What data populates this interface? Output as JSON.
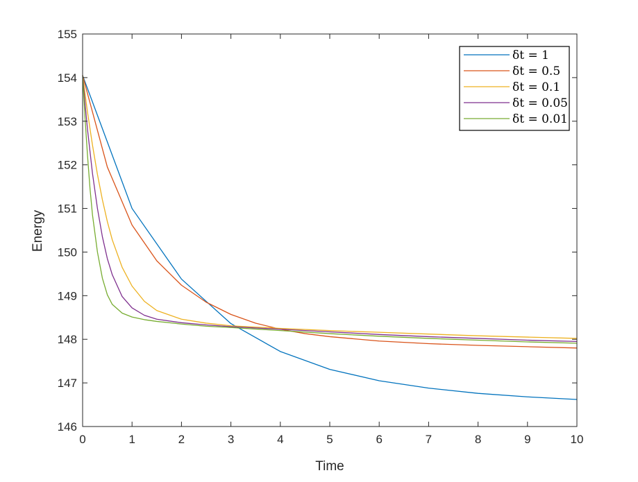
{
  "chart_data": {
    "type": "line",
    "title": "",
    "xlabel": "Time",
    "ylabel": "Energy",
    "xlim": [
      0,
      10
    ],
    "ylim": [
      146,
      155
    ],
    "xticks": [
      0,
      1,
      2,
      3,
      4,
      5,
      6,
      7,
      8,
      9,
      10
    ],
    "yticks": [
      146,
      147,
      148,
      149,
      150,
      151,
      152,
      153,
      154,
      155
    ],
    "grid": false,
    "legend_position": "top-right",
    "series": [
      {
        "name": "δt = 1",
        "color": "#0072BD",
        "x": [
          0,
          1,
          2,
          3,
          4,
          5,
          6,
          7,
          8,
          9,
          10
        ],
        "y": [
          154.05,
          151.0,
          149.38,
          148.36,
          147.72,
          147.31,
          147.05,
          146.88,
          146.76,
          146.68,
          146.62
        ]
      },
      {
        "name": "δt = 0.5",
        "color": "#D95319",
        "x": [
          0,
          0.5,
          1,
          1.5,
          2,
          2.5,
          3,
          3.5,
          4,
          4.5,
          5,
          6,
          7,
          8,
          9,
          10
        ],
        "y": [
          154.05,
          151.95,
          150.62,
          149.8,
          149.24,
          148.85,
          148.57,
          148.37,
          148.23,
          148.13,
          148.06,
          147.96,
          147.9,
          147.86,
          147.83,
          147.8
        ],
        "label_hint": ""
      },
      {
        "name": "δt = 0.1",
        "color": "#EDB120",
        "x": [
          0,
          0.1,
          0.2,
          0.3,
          0.4,
          0.5,
          0.6,
          0.8,
          1,
          1.25,
          1.5,
          2,
          2.5,
          3,
          4,
          5,
          6,
          7,
          8,
          9,
          10
        ],
        "y": [
          154.05,
          153.2,
          152.45,
          151.78,
          151.2,
          150.7,
          150.28,
          149.65,
          149.22,
          148.87,
          148.66,
          148.46,
          148.37,
          148.31,
          148.25,
          148.2,
          148.16,
          148.12,
          148.08,
          148.05,
          148.02
        ]
      },
      {
        "name": "δt = 0.05",
        "color": "#7E2F8E",
        "x": [
          0,
          0.05,
          0.1,
          0.2,
          0.3,
          0.4,
          0.5,
          0.6,
          0.8,
          1,
          1.25,
          1.5,
          2,
          2.5,
          3,
          4,
          5,
          6,
          7,
          8,
          9,
          10
        ],
        "y": [
          154.05,
          153.4,
          152.8,
          151.8,
          151.0,
          150.35,
          149.85,
          149.48,
          148.98,
          148.72,
          148.55,
          148.46,
          148.38,
          148.33,
          148.29,
          148.23,
          148.17,
          148.11,
          148.06,
          148.02,
          147.98,
          147.95
        ]
      },
      {
        "name": "δt = 0.01",
        "color": "#77AC30",
        "x": [
          0,
          0.05,
          0.1,
          0.15,
          0.2,
          0.3,
          0.4,
          0.5,
          0.6,
          0.8,
          1,
          1.25,
          1.5,
          2,
          2.5,
          3,
          4,
          5,
          6,
          7,
          8,
          9,
          10
        ],
        "y": [
          154.05,
          153.05,
          152.2,
          151.45,
          150.85,
          150.0,
          149.4,
          149.02,
          148.8,
          148.6,
          148.51,
          148.45,
          148.41,
          148.35,
          148.3,
          148.27,
          148.2,
          148.13,
          148.07,
          148.02,
          147.98,
          147.94,
          147.91
        ]
      }
    ]
  }
}
